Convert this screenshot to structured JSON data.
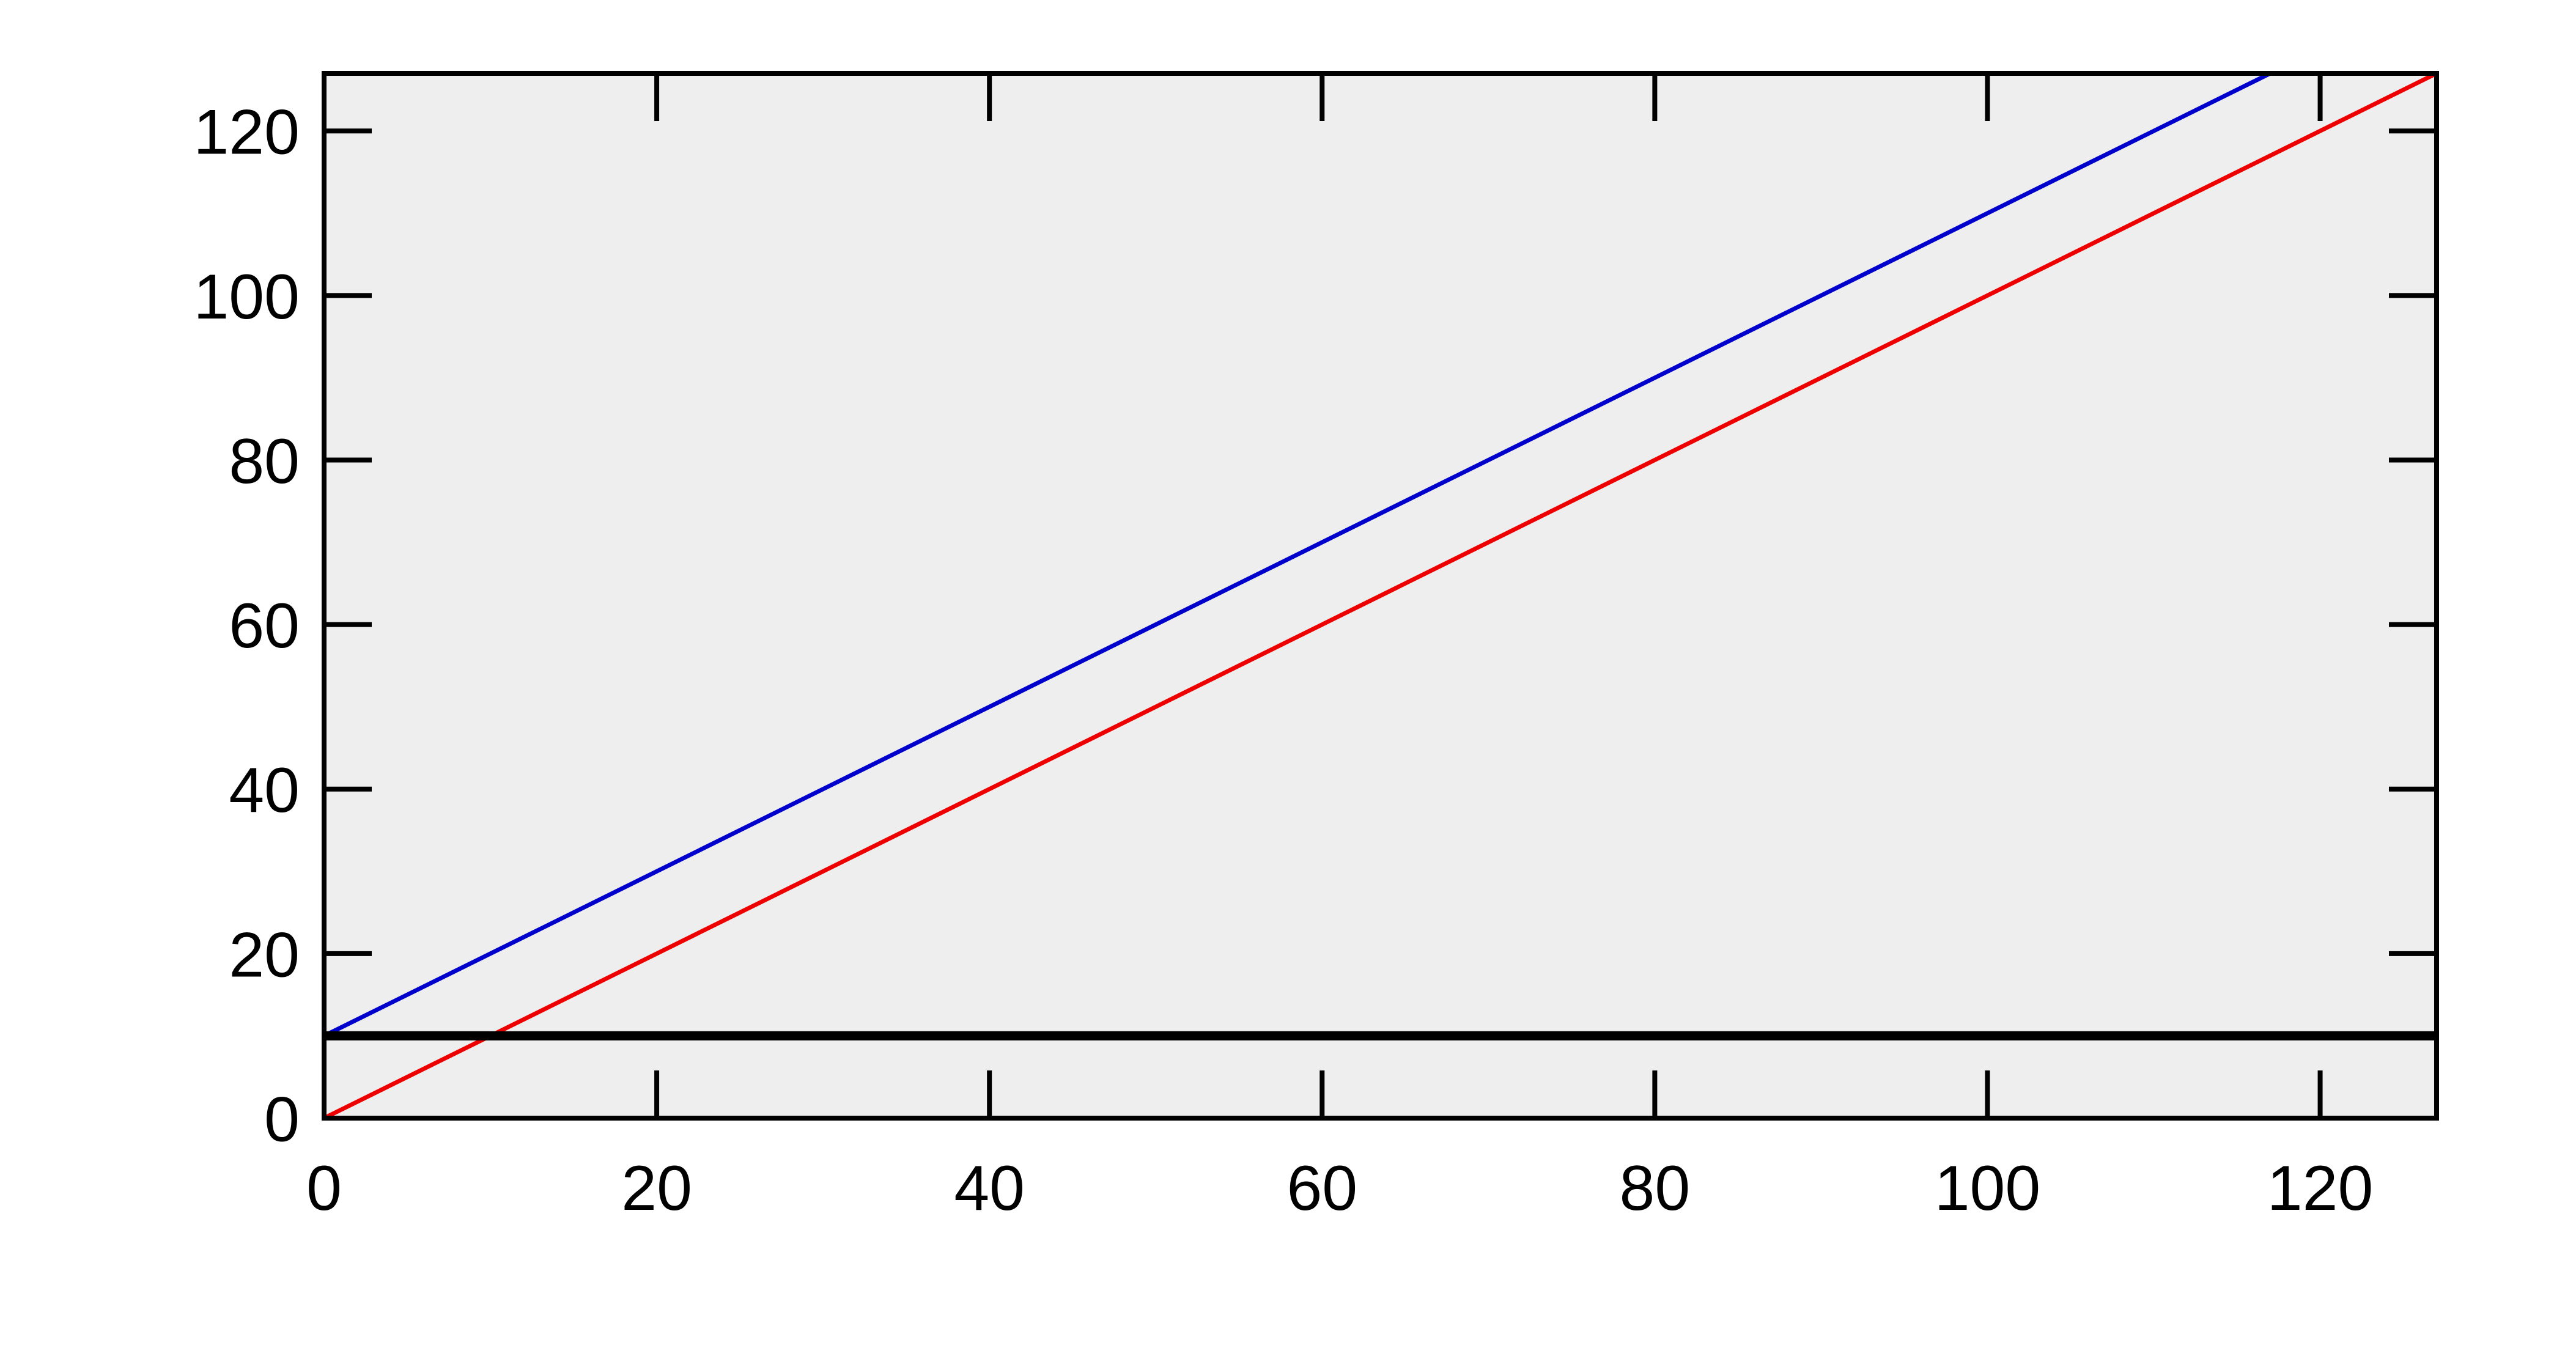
{
  "chart_data": {
    "type": "line",
    "title": "",
    "xlabel": "",
    "ylabel": "",
    "xlim": [
      0,
      127
    ],
    "ylim": [
      0,
      127
    ],
    "x_ticks": [
      0,
      20,
      40,
      60,
      80,
      100,
      120
    ],
    "y_ticks": [
      0,
      20,
      40,
      60,
      80,
      100,
      120
    ],
    "x_tick_labels": [
      "0",
      "20",
      "40",
      "60",
      "80",
      "100",
      "120"
    ],
    "y_tick_labels": [
      "0",
      "20",
      "40",
      "60",
      "80",
      "100",
      "120"
    ],
    "grid": false,
    "legend": "none",
    "plot_background": "#eeeeee",
    "series": [
      {
        "color": "#0000cc",
        "x": [
          0,
          117
        ],
        "y": [
          10,
          127
        ]
      },
      {
        "color": "#ee0000",
        "x": [
          0,
          127
        ],
        "y": [
          0,
          127
        ]
      },
      {
        "color": "#000000",
        "x": [
          0,
          127
        ],
        "y": [
          10,
          10
        ]
      }
    ]
  }
}
